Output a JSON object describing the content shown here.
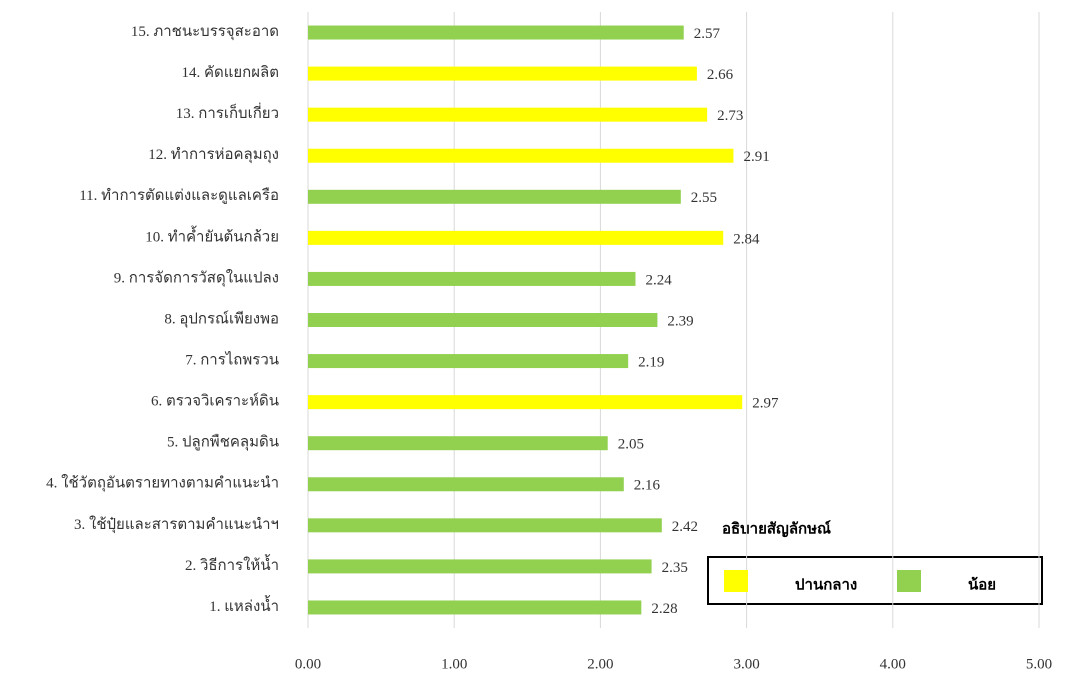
{
  "chart_data": {
    "type": "barh",
    "categories": [
      "15. ภาชนะบรรจุสะอาด",
      "14. คัดแยกผลิต",
      "13. การเก็บเกี่ยว",
      "12. ทำการห่อคลุมถุง",
      "11. ทำการตัดแต่งและดูแลเครือ",
      "10. ทำค้ำยันต้นกล้วย",
      "9. การจัดการวัสดุในแปลง",
      "8. อุปกรณ์เพียงพอ",
      "7. การไถพรวน",
      "6. ตรวจวิเคราะห์ดิน",
      "5. ปลูกพืชคลุมดิน",
      "4. ใช้วัตถุอันตรายทางตามคำแนะนำ",
      "3. ใช้ปุ๋ยและสารตามคำแนะนำฯ",
      "2. วิธีการให้น้ำ",
      "1. แหล่งน้ำ"
    ],
    "series": [
      {
        "name": "ปานกลาง",
        "color": "#ffff00",
        "values": [
          null,
          2.66,
          2.73,
          2.91,
          null,
          2.84,
          null,
          null,
          null,
          2.97,
          null,
          null,
          null,
          null,
          null
        ]
      },
      {
        "name": "น้อย",
        "color": "#92d050",
        "values": [
          2.57,
          null,
          null,
          null,
          2.55,
          null,
          2.24,
          2.39,
          2.19,
          null,
          2.05,
          2.16,
          2.42,
          2.35,
          2.28
        ]
      }
    ],
    "xlim": [
      0,
      5
    ],
    "xticks": [
      {
        "value": 0,
        "label": "0.00"
      },
      {
        "value": 1,
        "label": "1.00"
      },
      {
        "value": 2,
        "label": "2.00"
      },
      {
        "value": 3,
        "label": "3.00"
      },
      {
        "value": 4,
        "label": "4.00"
      },
      {
        "value": 5,
        "label": "5.00"
      }
    ],
    "grid": true,
    "legend_title": "อธิบายสัญลักษณ์",
    "legend_position": "lower right"
  }
}
